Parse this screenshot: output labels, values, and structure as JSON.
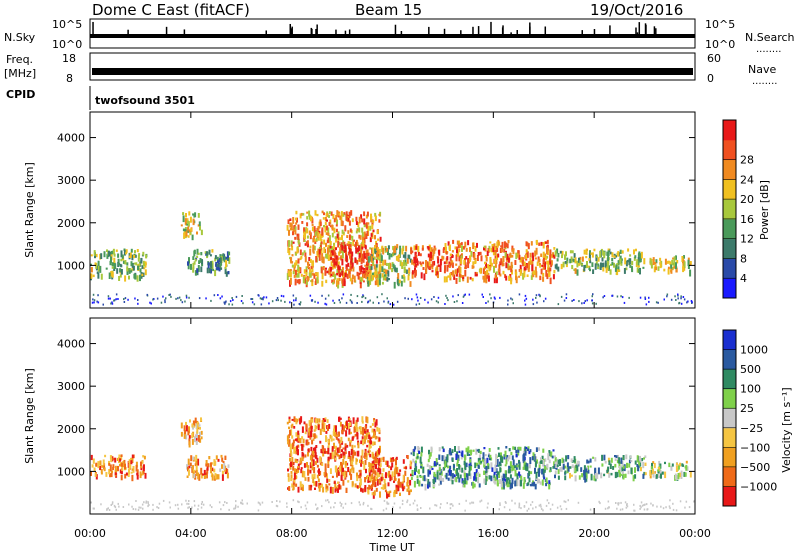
{
  "header": {
    "station": "Dome C East (fitACF)",
    "beam": "Beam 15",
    "date": "19/Oct/2016"
  },
  "meta_panels": {
    "nsky_label": "N.Sky",
    "nsearch_label": "N.Search",
    "nsky_ticks": [
      "10^5",
      "10^0"
    ],
    "nsearch_ticks": [
      "10^5",
      "10^0"
    ],
    "freq_label_line1": "Freq.",
    "freq_label_line2": "[MHz]",
    "freq_ticks": [
      "18",
      "8"
    ],
    "nave_label": "Nave",
    "nave_ticks": [
      "60",
      "0"
    ],
    "cpid_label": "CPID",
    "cpid_value": "twofsound 3501",
    "dots": "........"
  },
  "chart_data": [
    {
      "type": "heatmap",
      "name": "power",
      "ylabel": "Slant Range [km]",
      "y_ticks": [
        "1000",
        "2000",
        "3000",
        "4000"
      ],
      "ylim": [
        0,
        4600
      ],
      "xlim": [
        0,
        24
      ],
      "colorbar_label": "Power [dB]",
      "colorbar_ticks": [
        "4",
        "8",
        "12",
        "16",
        "20",
        "24",
        "28"
      ],
      "colorbar_colors": [
        "#1a1aff",
        "#2a4aa8",
        "#3c7a6a",
        "#4a9a5a",
        "#a8c83c",
        "#f0c020",
        "#f08a20",
        "#f05020",
        "#e81818"
      ],
      "echo_regions": [
        {
          "t0": 0.0,
          "t1": 2.2,
          "r0": 750,
          "r1": 1400,
          "level": 0.45
        },
        {
          "t0": 3.8,
          "t1": 5.5,
          "r0": 850,
          "r1": 1400,
          "level": 0.35
        },
        {
          "t0": 3.6,
          "t1": 4.4,
          "r0": 1700,
          "r1": 2300,
          "level": 0.55
        },
        {
          "t0": 7.8,
          "t1": 11.5,
          "r0": 600,
          "r1": 2300,
          "level": 0.7
        },
        {
          "t0": 9.5,
          "t1": 11.0,
          "r0": 800,
          "r1": 1500,
          "level": 0.9
        },
        {
          "t0": 11.0,
          "t1": 12.7,
          "r0": 600,
          "r1": 1500,
          "level": 0.5
        },
        {
          "t0": 12.7,
          "t1": 14.0,
          "r0": 800,
          "r1": 1500,
          "level": 0.85
        },
        {
          "t0": 14.0,
          "t1": 18.4,
          "r0": 700,
          "r1": 1600,
          "level": 0.75
        },
        {
          "t0": 18.4,
          "t1": 22.0,
          "r0": 900,
          "r1": 1400,
          "level": 0.45
        },
        {
          "t0": 22.0,
          "t1": 23.8,
          "r0": 900,
          "r1": 1250,
          "level": 0.55
        }
      ]
    },
    {
      "type": "heatmap",
      "name": "velocity",
      "ylabel": "Slant Range [km]",
      "y_ticks": [
        "1000",
        "2000",
        "3000",
        "4000"
      ],
      "ylim": [
        0,
        4600
      ],
      "xlim": [
        0,
        24
      ],
      "colorbar_label": "Velocity [m s⁻¹]",
      "colorbar_ticks": [
        "1000",
        "500",
        "100",
        "25",
        "−25",
        "−100",
        "−500",
        "−1000"
      ],
      "colorbar_colors": [
        "#1a2fd0",
        "#2a5aa0",
        "#2f8a62",
        "#7fd04a",
        "#c8c8c8",
        "#f5c542",
        "#f0a020",
        "#ef6a18",
        "#e81818"
      ],
      "echo_regions": [
        {
          "t0": 0.0,
          "t1": 2.2,
          "r0": 900,
          "r1": 1400,
          "level": 0.78
        },
        {
          "t0": 3.8,
          "t1": 5.5,
          "r0": 900,
          "r1": 1400,
          "level": 0.75
        },
        {
          "t0": 3.6,
          "t1": 4.4,
          "r0": 1700,
          "r1": 2300,
          "level": 0.72
        },
        {
          "t0": 7.8,
          "t1": 11.5,
          "r0": 600,
          "r1": 2300,
          "level": 0.8
        },
        {
          "t0": 11.0,
          "t1": 12.7,
          "r0": 500,
          "r1": 1400,
          "level": 0.8
        },
        {
          "t0": 12.7,
          "t1": 18.4,
          "r0": 700,
          "r1": 1600,
          "level": 0.3
        },
        {
          "t0": 18.4,
          "t1": 22.0,
          "r0": 900,
          "r1": 1400,
          "level": 0.35
        },
        {
          "t0": 22.0,
          "t1": 23.8,
          "r0": 900,
          "r1": 1250,
          "level": 0.45
        }
      ]
    }
  ],
  "x_axis": {
    "label": "Time UT",
    "ticks": [
      "00:00",
      "04:00",
      "08:00",
      "12:00",
      "16:00",
      "20:00",
      "00:00"
    ]
  }
}
